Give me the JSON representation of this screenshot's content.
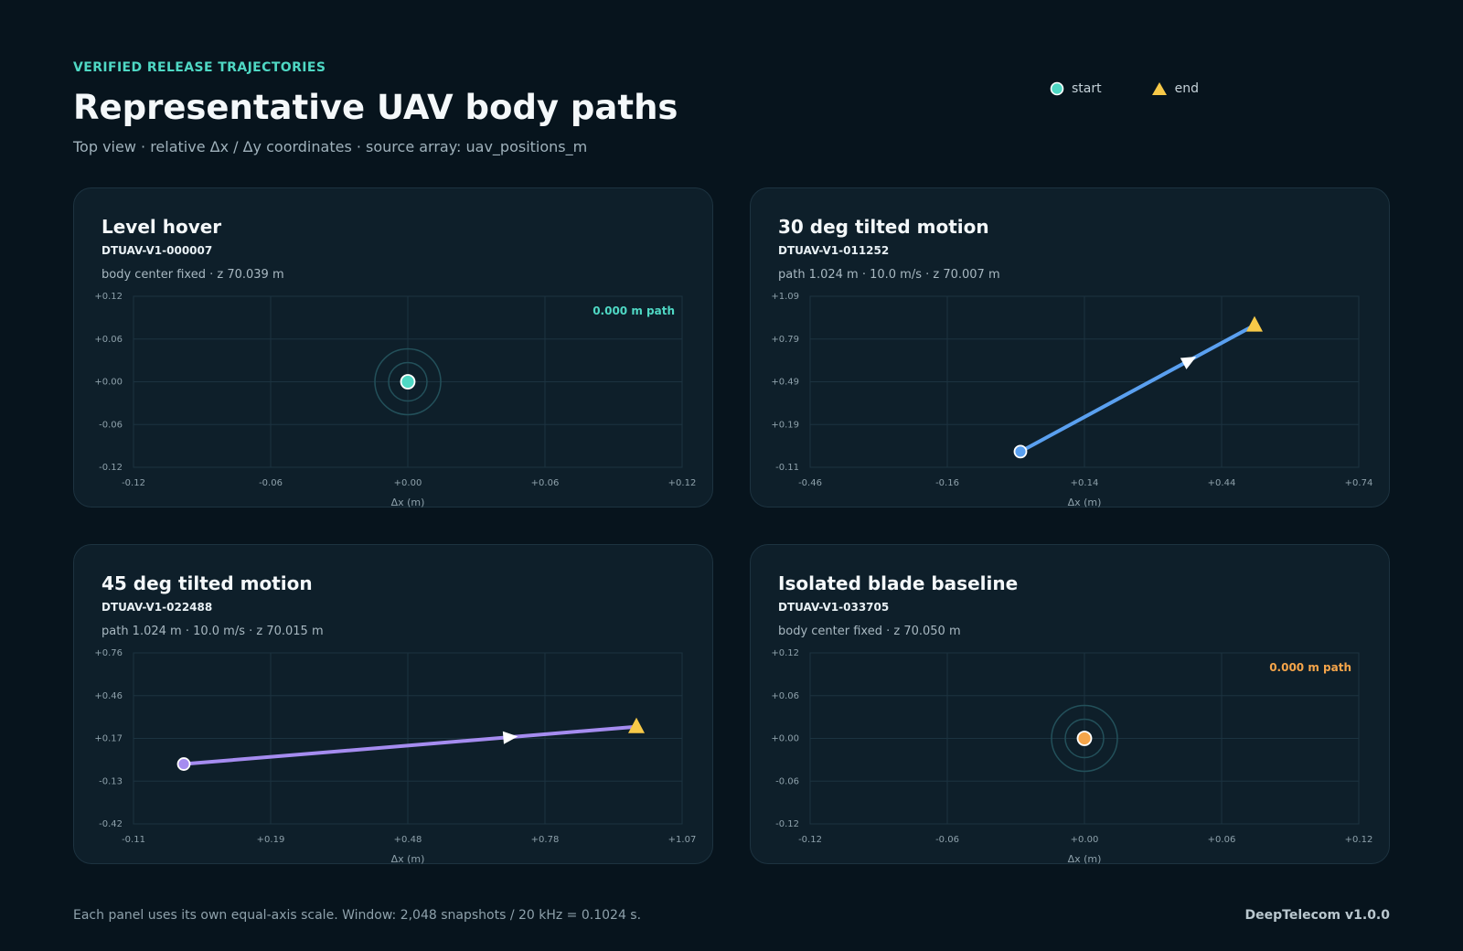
{
  "header": {
    "eyebrow": "VERIFIED RELEASE TRAJECTORIES",
    "title": "Representative UAV body paths",
    "subtitle": "Top view · relative Δx / Δy coordinates · source array: uav_positions_m"
  },
  "legend": {
    "start_label": "start",
    "end_label": "end",
    "end_color": "#f7c948"
  },
  "colors": {
    "start_marker_default": "#4fd8c4",
    "grid": "#1c3340",
    "end_marker": "#f7c948"
  },
  "chart_data": [
    {
      "type": "line",
      "title": "Level hover",
      "id_label": "DTUAV-V1-000007",
      "description": "body center fixed · z 70.039 m",
      "accent": "#4fd8c4",
      "xlabel": "Δx (m)",
      "ylabel": "",
      "xlim": [
        -0.12,
        0.12
      ],
      "ylim": [
        -0.12,
        0.12
      ],
      "x_ticks": [
        "-0.12",
        "-0.06",
        "+0.00",
        "+0.06",
        "+0.12"
      ],
      "y_ticks": [
        "+0.12",
        "+0.06",
        "+0.00",
        "-0.06",
        "-0.12"
      ],
      "grid": true,
      "stationary": true,
      "annotation": "0.000 m path",
      "points": [
        {
          "x": 0.0,
          "y": 0.0
        }
      ]
    },
    {
      "type": "line",
      "title": "30 deg tilted motion",
      "id_label": "DTUAV-V1-011252",
      "description": "path 1.024 m · 10.0 m/s · z 70.007 m",
      "accent": "#5aa0f0",
      "xlabel": "Δx (m)",
      "ylabel": "",
      "xlim": [
        -0.46,
        0.74
      ],
      "ylim": [
        -0.11,
        1.09
      ],
      "x_ticks": [
        "-0.46",
        "-0.16",
        "+0.14",
        "+0.44",
        "+0.74"
      ],
      "y_ticks": [
        "+1.09",
        "+0.79",
        "+0.49",
        "+0.19",
        "-0.11"
      ],
      "grid": true,
      "stationary": false,
      "annotation": "",
      "points": [
        {
          "x": 0.0,
          "y": 0.0
        },
        {
          "x": 0.512,
          "y": 0.887
        }
      ]
    },
    {
      "type": "line",
      "title": "45 deg tilted motion",
      "id_label": "DTUAV-V1-022488",
      "description": "path 1.024 m · 10.0 m/s · z 70.015 m",
      "accent": "#a58cf0",
      "xlabel": "Δx (m)",
      "ylabel": "",
      "xlim": [
        -0.11,
        1.09
      ],
      "ylim": [
        -0.42,
        0.78
      ],
      "x_ticks": [
        "-0.11",
        "+0.19",
        "+0.48",
        "+0.78",
        "+1.07"
      ],
      "y_ticks": [
        "+0.76",
        "+0.46",
        "+0.17",
        "-0.13",
        "-0.42"
      ],
      "grid": true,
      "stationary": false,
      "annotation": "",
      "points": [
        {
          "x": 0.0,
          "y": 0.0
        },
        {
          "x": 0.99,
          "y": 0.262
        }
      ]
    },
    {
      "type": "line",
      "title": "Isolated blade baseline",
      "id_label": "DTUAV-V1-033705",
      "description": "body center fixed · z 70.050 m",
      "accent": "#f5a54a",
      "xlabel": "Δx (m)",
      "ylabel": "",
      "xlim": [
        -0.12,
        0.12
      ],
      "ylim": [
        -0.12,
        0.12
      ],
      "x_ticks": [
        "-0.12",
        "-0.06",
        "+0.00",
        "+0.06",
        "+0.12"
      ],
      "y_ticks": [
        "+0.12",
        "+0.06",
        "+0.00",
        "-0.06",
        "-0.12"
      ],
      "grid": true,
      "stationary": true,
      "annotation": "0.000 m path",
      "points": [
        {
          "x": 0.0,
          "y": 0.0
        }
      ]
    }
  ],
  "footer": {
    "note": "Each panel uses its own equal-axis scale. Window: 2,048 snapshots / 20 kHz = 0.1024 s.",
    "brand": "DeepTelecom v1.0.0"
  }
}
